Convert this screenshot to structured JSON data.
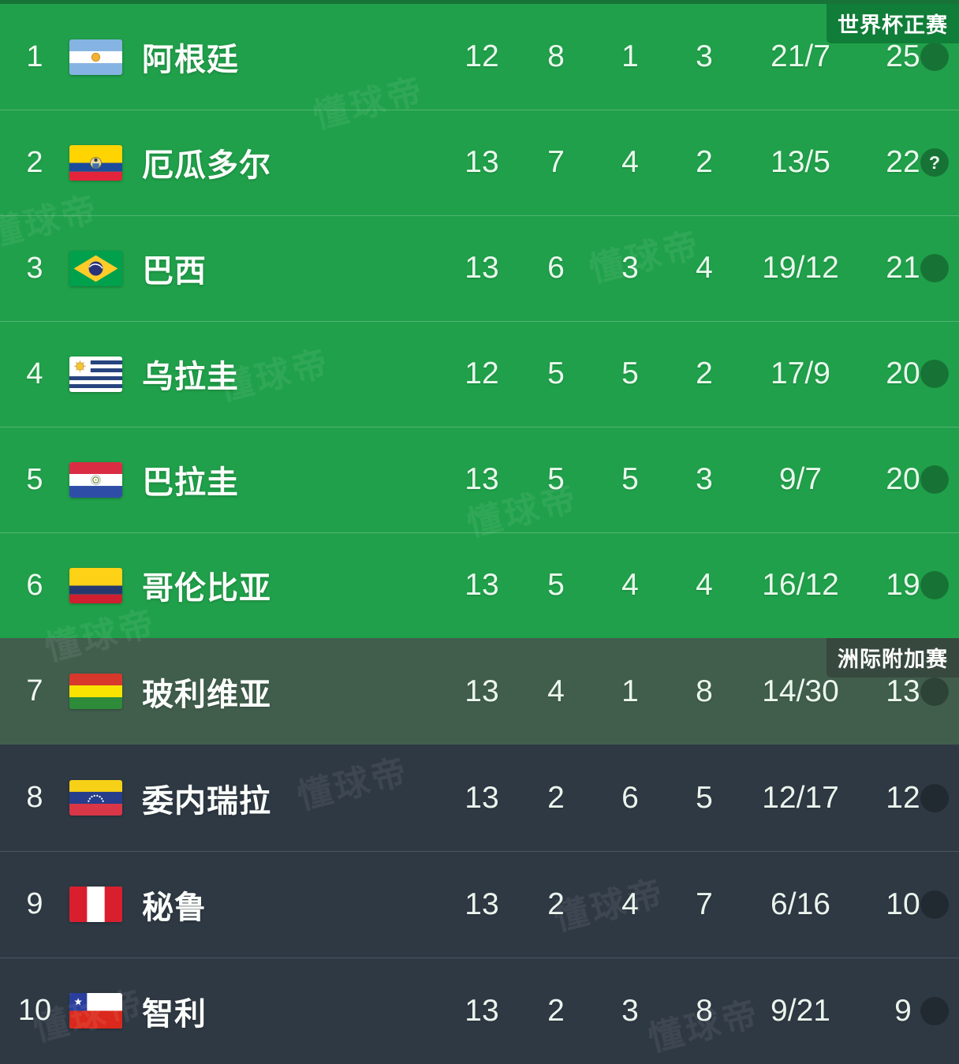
{
  "page": {
    "watermark": "懂球帝"
  },
  "badges": {
    "world_cup": "世界杯正赛",
    "playoff": "洲际附加赛"
  },
  "note_icon": "?",
  "colors": {
    "qualified_row_bg": "#20A04A",
    "playoff_row_bg": "#415E4D",
    "eliminated_row_bg": "#2F3944",
    "top_strip": "#177338",
    "world_cup_badge_bg": "#107D38",
    "playoff_badge_bg": "#37493E",
    "text": "#F2FBF3"
  },
  "standings": [
    {
      "rank": "1",
      "team": "阿根廷",
      "flag": "argentina",
      "zone": "qualified",
      "played": "12",
      "won": "8",
      "drawn": "1",
      "lost": "3",
      "goals": "21/7",
      "points": "25",
      "note": false
    },
    {
      "rank": "2",
      "team": "厄瓜多尔",
      "flag": "ecuador",
      "zone": "qualified",
      "played": "13",
      "won": "7",
      "drawn": "4",
      "lost": "2",
      "goals": "13/5",
      "points": "22",
      "note": true
    },
    {
      "rank": "3",
      "team": "巴西",
      "flag": "brazil",
      "zone": "qualified",
      "played": "13",
      "won": "6",
      "drawn": "3",
      "lost": "4",
      "goals": "19/12",
      "points": "21",
      "note": false
    },
    {
      "rank": "4",
      "team": "乌拉圭",
      "flag": "uruguay",
      "zone": "qualified",
      "played": "12",
      "won": "5",
      "drawn": "5",
      "lost": "2",
      "goals": "17/9",
      "points": "20",
      "note": false
    },
    {
      "rank": "5",
      "team": "巴拉圭",
      "flag": "paraguay",
      "zone": "qualified",
      "played": "13",
      "won": "5",
      "drawn": "5",
      "lost": "3",
      "goals": "9/7",
      "points": "20",
      "note": false
    },
    {
      "rank": "6",
      "team": "哥伦比亚",
      "flag": "colombia",
      "zone": "qualified",
      "played": "13",
      "won": "5",
      "drawn": "4",
      "lost": "4",
      "goals": "16/12",
      "points": "19",
      "note": false
    },
    {
      "rank": "7",
      "team": "玻利维亚",
      "flag": "bolivia",
      "zone": "playoff",
      "played": "13",
      "won": "4",
      "drawn": "1",
      "lost": "8",
      "goals": "14/30",
      "points": "13",
      "note": false
    },
    {
      "rank": "8",
      "team": "委内瑞拉",
      "flag": "venezuela",
      "zone": "eliminated",
      "played": "13",
      "won": "2",
      "drawn": "6",
      "lost": "5",
      "goals": "12/17",
      "points": "12",
      "note": false
    },
    {
      "rank": "9",
      "team": "秘鲁",
      "flag": "peru",
      "zone": "eliminated",
      "played": "13",
      "won": "2",
      "drawn": "4",
      "lost": "7",
      "goals": "6/16",
      "points": "10",
      "note": false
    },
    {
      "rank": "10",
      "team": "智利",
      "flag": "chile",
      "zone": "eliminated",
      "played": "13",
      "won": "2",
      "drawn": "3",
      "lost": "8",
      "goals": "9/21",
      "points": "9",
      "note": false
    }
  ]
}
